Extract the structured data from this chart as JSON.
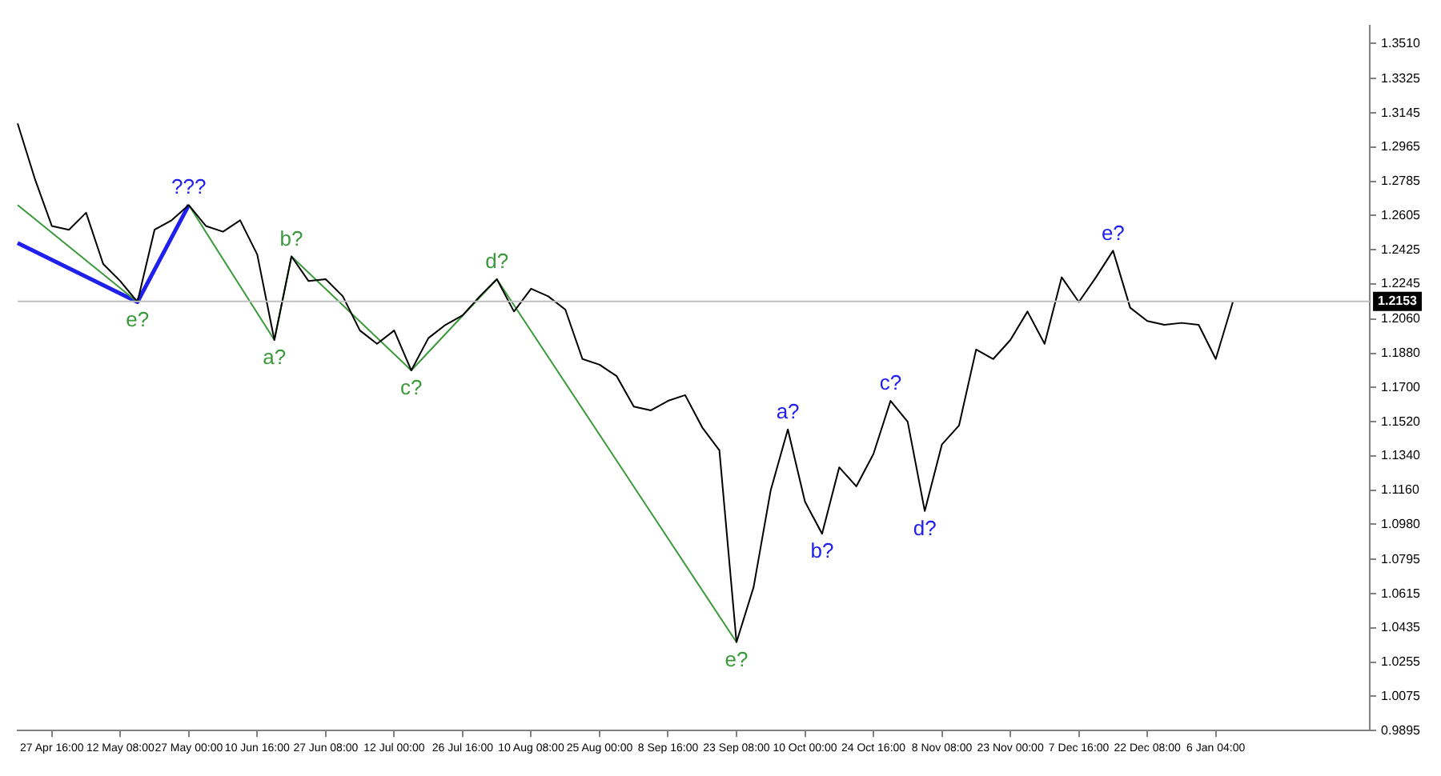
{
  "chart_data": {
    "type": "line",
    "legend": false,
    "grid": false,
    "marker": "none",
    "line_style": "solid",
    "categories": [
      null,
      null,
      "27 Apr 16:00",
      null,
      null,
      null,
      "12 May 08:00",
      null,
      null,
      null,
      "27 May 00:00",
      null,
      null,
      null,
      "10 Jun 16:00",
      null,
      null,
      null,
      "27 Jun 08:00",
      null,
      null,
      null,
      "12 Jul 00:00",
      null,
      null,
      null,
      "26 Jul 16:00",
      null,
      null,
      null,
      "10 Aug 08:00",
      null,
      null,
      null,
      "25 Aug 00:00",
      null,
      null,
      null,
      "8 Sep 16:00",
      null,
      null,
      null,
      "23 Sep 08:00",
      null,
      null,
      null,
      "10 Oct 00:00",
      null,
      null,
      null,
      "24 Oct 16:00",
      null,
      null,
      null,
      "8 Nov 08:00",
      null,
      null,
      null,
      "23 Nov 00:00",
      null,
      null,
      null,
      "7 Dec 16:00",
      null,
      null,
      null,
      "22 Dec 08:00",
      null,
      null,
      null,
      "6 Jan 04:00",
      null,
      null,
      null,
      null,
      null,
      null,
      null,
      null,
      null
    ],
    "ylim": [
      0.9895,
      1.3606
    ],
    "yticks": [
      {
        "value": 1.351,
        "label": "1.3510"
      },
      {
        "value": 1.3325,
        "label": "1.3325"
      },
      {
        "value": 1.3145,
        "label": "1.3145"
      },
      {
        "value": 1.2965,
        "label": "1.2965"
      },
      {
        "value": 1.2785,
        "label": "1.2785"
      },
      {
        "value": 1.2605,
        "label": "1.2605"
      },
      {
        "value": 1.2425,
        "label": "1.2425"
      },
      {
        "value": 1.2245,
        "label": "1.2245"
      },
      {
        "value": 1.206,
        "label": "1.2060"
      },
      {
        "value": 1.188,
        "label": "1.1880"
      },
      {
        "value": 1.17,
        "label": "1.1700"
      },
      {
        "value": 1.152,
        "label": "1.1520"
      },
      {
        "value": 1.134,
        "label": "1.1340"
      },
      {
        "value": 1.116,
        "label": "1.1160"
      },
      {
        "value": 1.098,
        "label": "1.0980"
      },
      {
        "value": 1.0795,
        "label": "1.0795"
      },
      {
        "value": 1.0615,
        "label": "1.0615"
      },
      {
        "value": 1.0435,
        "label": "1.0435"
      },
      {
        "value": 1.0255,
        "label": "1.0255"
      },
      {
        "value": 1.0075,
        "label": "1.0075"
      },
      {
        "value": 0.9895,
        "label": "0.9895"
      }
    ],
    "ref_lines": [
      {
        "axis": "y",
        "value": 1.2153,
        "label": "1.2153",
        "color": "#c0c0c0"
      }
    ],
    "series": [
      {
        "color": "#000000",
        "values": [
          1.309,
          1.28,
          1.255,
          1.253,
          1.262,
          1.235,
          1.226,
          1.215,
          1.253,
          1.258,
          1.266,
          1.255,
          1.252,
          1.258,
          1.24,
          1.195,
          1.239,
          1.226,
          1.227,
          1.218,
          1.2,
          1.193,
          1.2,
          1.179,
          1.196,
          1.203,
          1.208,
          1.218,
          1.227,
          1.21,
          1.222,
          1.218,
          1.211,
          1.185,
          1.182,
          1.176,
          1.16,
          1.158,
          1.163,
          1.166,
          1.149,
          1.137,
          1.036,
          1.065,
          1.116,
          1.148,
          1.11,
          1.093,
          1.128,
          1.118,
          1.135,
          1.163,
          1.152,
          1.105,
          1.14,
          1.15,
          1.19,
          1.185,
          1.195,
          1.21,
          1.193,
          1.228,
          1.215,
          1.228,
          1.242,
          1.212,
          1.205,
          1.203,
          1.204,
          1.203,
          1.185,
          1.215,
          null,
          null,
          null,
          null,
          null,
          null,
          null,
          null
        ],
        "value_labels": [
          null,
          null,
          null,
          null,
          null,
          null,
          null,
          null,
          null,
          null,
          null,
          null,
          null,
          null,
          null,
          null,
          null,
          null,
          null,
          null,
          null,
          null,
          null,
          null,
          null,
          null,
          null,
          null,
          null,
          null,
          null,
          null,
          null,
          null,
          null,
          null,
          null,
          null,
          null,
          null,
          null,
          null,
          null,
          null,
          null,
          "a?",
          null,
          "b?",
          null,
          null,
          null,
          "c?",
          null,
          "d?",
          null,
          null,
          null,
          null,
          null,
          null,
          null,
          null,
          null,
          null,
          "e?",
          null,
          null,
          null,
          null,
          null,
          null,
          null,
          null,
          null,
          null,
          null,
          null,
          null,
          null,
          null
        ]
      },
      {
        "color": "#3a9a3a",
        "values": [
          1.266,
          null,
          null,
          null,
          null,
          null,
          null,
          1.215,
          null,
          null,
          null,
          null,
          null,
          null,
          null,
          null,
          null,
          null,
          null,
          null,
          null,
          null,
          null,
          null,
          null,
          null,
          null,
          null,
          null,
          null,
          null,
          null,
          null,
          null,
          null,
          null,
          null,
          null,
          null,
          null,
          null,
          null,
          null,
          null,
          null,
          null,
          null,
          null,
          null,
          null,
          null,
          null,
          null,
          null,
          null,
          null,
          null,
          null,
          null,
          null,
          null,
          null,
          null,
          null,
          null,
          null,
          null,
          null,
          null,
          null,
          null,
          null,
          null,
          null,
          null,
          null,
          null,
          null,
          null,
          null
        ],
        "value_labels": [
          null,
          null,
          null,
          null,
          null,
          null,
          null,
          "e?",
          null,
          null,
          null,
          null,
          null,
          null,
          null,
          null,
          null,
          null,
          null,
          null,
          null,
          null,
          null,
          null,
          null,
          null,
          null,
          null,
          null,
          null,
          null,
          null,
          null,
          null,
          null,
          null,
          null,
          null,
          null,
          null,
          null,
          null,
          null,
          null,
          null,
          null,
          null,
          null,
          null,
          null,
          null,
          null,
          null,
          null,
          null,
          null,
          null,
          null,
          null,
          null,
          null,
          null,
          null,
          null,
          null,
          null,
          null,
          null,
          null,
          null,
          null,
          null,
          null,
          null,
          null,
          null,
          null,
          null,
          null,
          null
        ]
      },
      {
        "color": "#3a9a3a",
        "values": [
          null,
          null,
          null,
          null,
          null,
          null,
          null,
          null,
          null,
          null,
          1.266,
          null,
          null,
          null,
          null,
          1.195,
          1.239,
          null,
          null,
          null,
          null,
          null,
          null,
          1.179,
          null,
          null,
          null,
          null,
          1.227,
          null,
          null,
          null,
          null,
          null,
          null,
          null,
          null,
          null,
          null,
          null,
          null,
          null,
          1.036,
          null,
          null,
          null,
          null,
          null,
          null,
          null,
          null,
          null,
          null,
          null,
          null,
          null,
          null,
          null,
          null,
          null,
          null,
          null,
          null,
          null,
          null,
          null,
          null,
          null,
          null,
          null,
          null,
          null,
          null,
          null,
          null,
          null,
          null,
          null,
          null,
          null
        ],
        "value_labels": [
          null,
          null,
          null,
          null,
          null,
          null,
          null,
          null,
          null,
          null,
          null,
          null,
          null,
          null,
          null,
          "a?",
          "b?",
          null,
          null,
          null,
          null,
          null,
          null,
          "c?",
          null,
          null,
          null,
          null,
          "d?",
          null,
          null,
          null,
          null,
          null,
          null,
          null,
          null,
          null,
          null,
          null,
          null,
          null,
          "e?",
          null,
          null,
          null,
          null,
          null,
          null,
          null,
          null,
          null,
          null,
          null,
          null,
          null,
          null,
          null,
          null,
          null,
          null,
          null,
          null,
          null,
          null,
          null,
          null,
          null,
          null,
          null,
          null,
          null,
          null,
          null,
          null,
          null,
          null,
          null,
          null,
          null
        ]
      },
      {
        "color": "#2020ee",
        "values": [
          1.246,
          null,
          null,
          null,
          null,
          null,
          null,
          1.215,
          null,
          null,
          1.266,
          null,
          null,
          null,
          null,
          null,
          null,
          null,
          null,
          null,
          null,
          null,
          null,
          null,
          null,
          null,
          null,
          null,
          null,
          null,
          null,
          null,
          null,
          null,
          null,
          null,
          null,
          null,
          null,
          null,
          null,
          null,
          null,
          null,
          null,
          null,
          null,
          null,
          null,
          null,
          null,
          null,
          null,
          null,
          null,
          null,
          null,
          null,
          null,
          null,
          null,
          null,
          null,
          null,
          null,
          null,
          null,
          null,
          null,
          null,
          null,
          null,
          null,
          null,
          null,
          null,
          null,
          null,
          null,
          null
        ],
        "value_labels": [
          null,
          null,
          null,
          null,
          null,
          null,
          null,
          null,
          null,
          null,
          "???",
          null,
          null,
          null,
          null,
          null,
          null,
          null,
          null,
          null,
          null,
          null,
          null,
          null,
          null,
          null,
          null,
          null,
          null,
          null,
          null,
          null,
          null,
          null,
          null,
          null,
          null,
          null,
          null,
          null,
          null,
          null,
          null,
          null,
          null,
          null,
          null,
          null,
          null,
          null,
          null,
          null,
          null,
          null,
          null,
          null,
          null,
          null,
          null,
          null,
          null,
          null,
          null,
          null,
          null,
          null,
          null,
          null,
          null,
          null,
          null,
          null,
          null,
          null,
          null,
          null,
          null,
          null,
          null,
          null
        ]
      }
    ]
  }
}
